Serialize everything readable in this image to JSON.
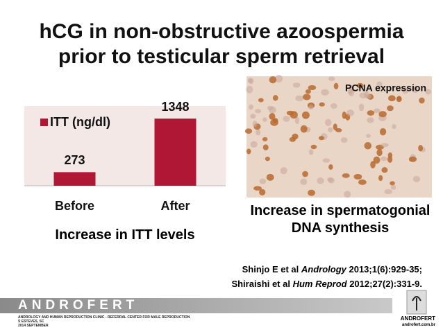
{
  "title": [
    "hCG in non-obstructive azoospermia",
    "prior to testicular sperm retrieval"
  ],
  "chart_data": {
    "type": "bar",
    "categories": [
      "Before",
      "After"
    ],
    "series": [
      {
        "name": "ITT (ng/dl)",
        "color": "#b01735",
        "values": [
          273,
          1348
        ]
      }
    ],
    "ylim": [
      0,
      1600
    ],
    "legend": "upper left",
    "caption": "Increase in ITT levels"
  },
  "image": {
    "caption": "PCNA expression",
    "finding": "Increase in spermatogonial DNA synthesis"
  },
  "references": [
    {
      "authors": "Shinjo E et al ",
      "journal": "Andrology",
      "citation": " 2013;1(6):929-35;"
    },
    {
      "authors": "Shiraishi et al ",
      "journal": "Hum Reprod",
      "citation": " 2012;27(2):331-9."
    }
  ],
  "footer": {
    "brand": "ANDROFERT",
    "lines": [
      "ANDROLOGY AND HUMAN REPRODUCTION CLINIC - REFERRAL CENTER FOR MALE REPRODUCTION",
      "S ESTEVES, SC",
      "2014 SEPTEMBER"
    ],
    "logo": "ANDROFERT",
    "site": "androfert.com.br"
  }
}
